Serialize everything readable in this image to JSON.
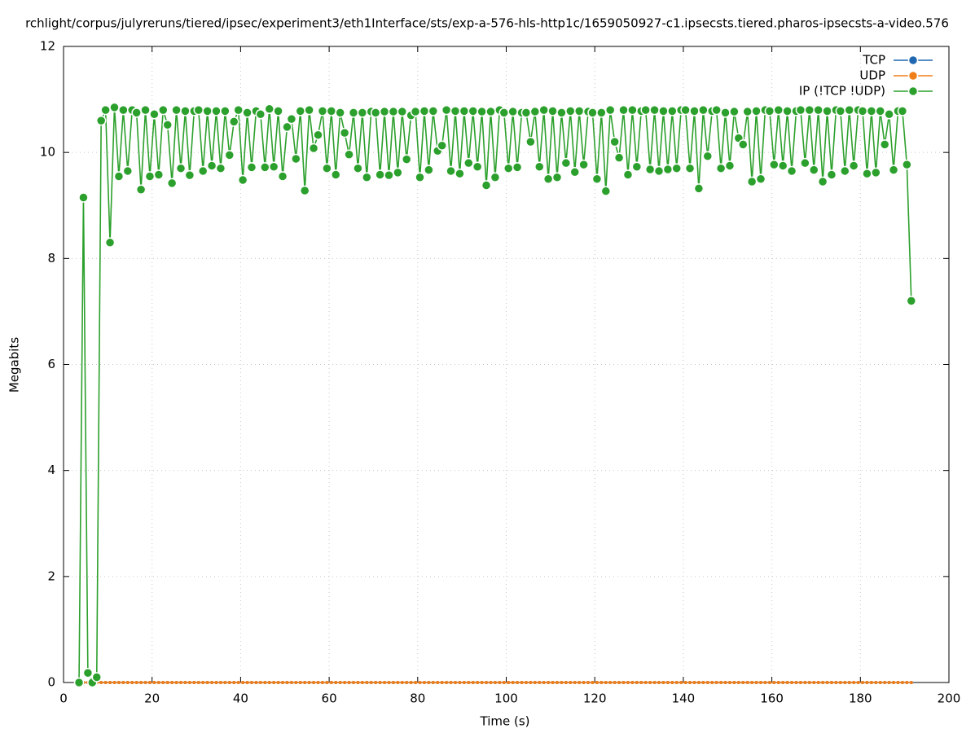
{
  "chart_data": {
    "type": "line",
    "title": "rchlight/corpus/julyreruns/tiered/ipsec/experiment3/eth1Interface/sts/exp-a-576-hls-http1c/1659050927-c1.ipsecsts.tiered.pharos-ipsecsts-a-video.576",
    "x_label": "Time (s)",
    "y_label": "Megabits",
    "xlim": [
      0,
      200
    ],
    "xticks": [
      0,
      20,
      40,
      60,
      80,
      100,
      120,
      140,
      160,
      180,
      200
    ],
    "ylim": [
      0,
      12
    ],
    "yticks": [
      0,
      2,
      4,
      6,
      8,
      10,
      12
    ],
    "grid": true,
    "legend": "top-right",
    "x": [
      3.5,
      4.5,
      5.5,
      6.5,
      7.5,
      8.5,
      9.5,
      10.5,
      11.5,
      12.5,
      13.5,
      14.5,
      15.5,
      16.5,
      17.5,
      18.5,
      19.5,
      20.5,
      21.5,
      22.5,
      23.5,
      24.5,
      25.5,
      26.5,
      27.5,
      28.5,
      29.5,
      30.5,
      31.5,
      32.5,
      33.5,
      34.5,
      35.5,
      36.5,
      37.5,
      38.5,
      39.5,
      40.5,
      41.5,
      42.5,
      43.5,
      44.5,
      45.5,
      46.5,
      47.5,
      48.5,
      49.5,
      50.5,
      51.5,
      52.5,
      53.5,
      54.5,
      55.5,
      56.5,
      57.5,
      58.5,
      59.5,
      60.5,
      61.5,
      62.5,
      63.5,
      64.5,
      65.5,
      66.5,
      67.5,
      68.5,
      69.5,
      70.5,
      71.5,
      72.5,
      73.5,
      74.5,
      75.5,
      76.5,
      77.5,
      78.5,
      79.5,
      80.5,
      81.5,
      82.5,
      83.5,
      84.5,
      85.5,
      86.5,
      87.5,
      88.5,
      89.5,
      90.5,
      91.5,
      92.5,
      93.5,
      94.5,
      95.5,
      96.5,
      97.5,
      98.5,
      99.5,
      100.5,
      101.5,
      102.5,
      103.5,
      104.5,
      105.5,
      106.5,
      107.5,
      108.5,
      109.5,
      110.5,
      111.5,
      112.5,
      113.5,
      114.5,
      115.5,
      116.5,
      117.5,
      118.5,
      119.5,
      120.5,
      121.5,
      122.5,
      123.5,
      124.5,
      125.5,
      126.5,
      127.5,
      128.5,
      129.5,
      130.5,
      131.5,
      132.5,
      133.5,
      134.5,
      135.5,
      136.5,
      137.5,
      138.5,
      139.5,
      140.5,
      141.5,
      142.5,
      143.5,
      144.5,
      145.5,
      146.5,
      147.5,
      148.5,
      149.5,
      150.5,
      151.5,
      152.5,
      153.5,
      154.5,
      155.5,
      156.5,
      157.5,
      158.5,
      159.5,
      160.5,
      161.5,
      162.5,
      163.5,
      164.5,
      165.5,
      166.5,
      167.5,
      168.5,
      169.5,
      170.5,
      171.5,
      172.5,
      173.5,
      174.5,
      175.5,
      176.5,
      177.5,
      178.5,
      179.5,
      180.5,
      181.5,
      182.5,
      183.5,
      184.5,
      185.5,
      186.5,
      187.5,
      188.5,
      189.5,
      190.5,
      191.5
    ],
    "series": [
      {
        "name": "TCP",
        "color": "#1f67b0",
        "values": [
          0,
          0,
          0,
          0,
          0,
          0,
          0,
          0,
          0,
          0,
          0,
          0,
          0,
          0,
          0,
          0,
          0,
          0,
          0,
          0,
          0,
          0,
          0,
          0,
          0,
          0,
          0,
          0,
          0,
          0,
          0,
          0,
          0,
          0,
          0,
          0,
          0,
          0,
          0,
          0,
          0,
          0,
          0,
          0,
          0,
          0,
          0,
          0,
          0,
          0,
          0,
          0,
          0,
          0,
          0,
          0,
          0,
          0,
          0,
          0,
          0,
          0,
          0,
          0,
          0,
          0,
          0,
          0,
          0,
          0,
          0,
          0,
          0,
          0,
          0,
          0,
          0,
          0,
          0,
          0,
          0,
          0,
          0,
          0,
          0,
          0,
          0,
          0,
          0,
          0,
          0,
          0,
          0,
          0,
          0,
          0,
          0,
          0,
          0,
          0,
          0,
          0,
          0,
          0,
          0,
          0,
          0,
          0,
          0,
          0,
          0,
          0,
          0,
          0,
          0,
          0,
          0,
          0,
          0,
          0,
          0,
          0,
          0,
          0,
          0,
          0,
          0,
          0,
          0,
          0,
          0,
          0,
          0,
          0,
          0,
          0,
          0,
          0,
          0,
          0,
          0,
          0,
          0,
          0,
          0,
          0,
          0,
          0,
          0,
          0,
          0,
          0,
          0,
          0,
          0,
          0,
          0,
          0,
          0,
          0,
          0,
          0,
          0,
          0,
          0,
          0,
          0,
          0,
          0,
          0,
          0,
          0,
          0,
          0,
          0,
          0,
          0,
          0,
          0,
          0,
          0,
          0,
          0,
          0,
          0,
          0,
          0,
          0,
          0
        ]
      },
      {
        "name": "UDP",
        "color": "#f07f1a",
        "values": [
          0,
          0,
          0,
          0,
          0,
          0,
          0,
          0,
          0,
          0,
          0,
          0,
          0,
          0,
          0,
          0,
          0,
          0,
          0,
          0,
          0,
          0,
          0,
          0,
          0,
          0,
          0,
          0,
          0,
          0,
          0,
          0,
          0,
          0,
          0,
          0,
          0,
          0,
          0,
          0,
          0,
          0,
          0,
          0,
          0,
          0,
          0,
          0,
          0,
          0,
          0,
          0,
          0,
          0,
          0,
          0,
          0,
          0,
          0,
          0,
          0,
          0,
          0,
          0,
          0,
          0,
          0,
          0,
          0,
          0,
          0,
          0,
          0,
          0,
          0,
          0,
          0,
          0,
          0,
          0,
          0,
          0,
          0,
          0,
          0,
          0,
          0,
          0,
          0,
          0,
          0,
          0,
          0,
          0,
          0,
          0,
          0,
          0,
          0,
          0,
          0,
          0,
          0,
          0,
          0,
          0,
          0,
          0,
          0,
          0,
          0,
          0,
          0,
          0,
          0,
          0,
          0,
          0,
          0,
          0,
          0,
          0,
          0,
          0,
          0,
          0,
          0,
          0,
          0,
          0,
          0,
          0,
          0,
          0,
          0,
          0,
          0,
          0,
          0,
          0,
          0,
          0,
          0,
          0,
          0,
          0,
          0,
          0,
          0,
          0,
          0,
          0,
          0,
          0,
          0,
          0,
          0,
          0,
          0,
          0,
          0,
          0,
          0,
          0,
          0,
          0,
          0,
          0,
          0,
          0,
          0,
          0,
          0,
          0,
          0,
          0,
          0,
          0,
          0,
          0,
          0,
          0,
          0,
          0,
          0,
          0,
          0,
          0,
          0
        ]
      },
      {
        "name": "IP (!TCP  !UDP)",
        "color": "#2ca02c",
        "values": [
          0,
          9.15,
          0.18,
          0,
          0.1,
          10.6,
          10.8,
          8.3,
          10.85,
          9.55,
          10.8,
          9.65,
          10.8,
          10.75,
          9.3,
          10.8,
          9.55,
          10.72,
          9.58,
          10.8,
          10.52,
          9.42,
          10.8,
          9.7,
          10.78,
          9.57,
          10.78,
          10.8,
          9.65,
          10.78,
          9.75,
          10.78,
          9.7,
          10.78,
          9.95,
          10.58,
          10.8,
          9.48,
          10.75,
          9.72,
          10.78,
          10.72,
          9.72,
          10.82,
          9.73,
          10.78,
          9.55,
          10.48,
          10.63,
          9.88,
          10.78,
          9.28,
          10.8,
          10.08,
          10.33,
          10.78,
          9.7,
          10.78,
          9.58,
          10.75,
          10.37,
          9.96,
          10.75,
          9.7,
          10.75,
          9.53,
          10.77,
          10.75,
          9.58,
          10.77,
          9.57,
          10.77,
          9.62,
          10.77,
          9.87,
          10.7,
          10.77,
          9.53,
          10.78,
          9.67,
          10.78,
          10.03,
          10.13,
          10.8,
          9.65,
          10.78,
          9.6,
          10.78,
          9.8,
          10.78,
          9.73,
          10.77,
          9.38,
          10.77,
          9.53,
          10.8,
          10.75,
          9.7,
          10.77,
          9.72,
          10.75,
          10.75,
          10.2,
          10.77,
          9.73,
          10.8,
          9.5,
          10.78,
          9.53,
          10.75,
          9.8,
          10.78,
          9.63,
          10.78,
          9.77,
          10.77,
          10.75,
          9.5,
          10.75,
          9.27,
          10.8,
          10.2,
          9.9,
          10.8,
          9.58,
          10.8,
          9.73,
          10.78,
          10.8,
          9.68,
          10.8,
          9.65,
          10.78,
          9.68,
          10.78,
          9.7,
          10.8,
          10.8,
          9.7,
          10.78,
          9.32,
          10.8,
          9.93,
          10.78,
          10.8,
          9.7,
          10.75,
          9.75,
          10.77,
          10.27,
          10.15,
          10.77,
          9.45,
          10.78,
          9.5,
          10.8,
          10.78,
          9.77,
          10.8,
          9.75,
          10.78,
          9.65,
          10.78,
          10.8,
          9.8,
          10.8,
          9.67,
          10.8,
          9.45,
          10.78,
          9.58,
          10.8,
          10.78,
          9.65,
          10.8,
          9.75,
          10.8,
          10.78,
          9.6,
          10.78,
          9.62,
          10.78,
          10.15,
          10.72,
          9.67,
          10.78,
          10.78,
          9.77,
          7.2
        ]
      }
    ]
  }
}
